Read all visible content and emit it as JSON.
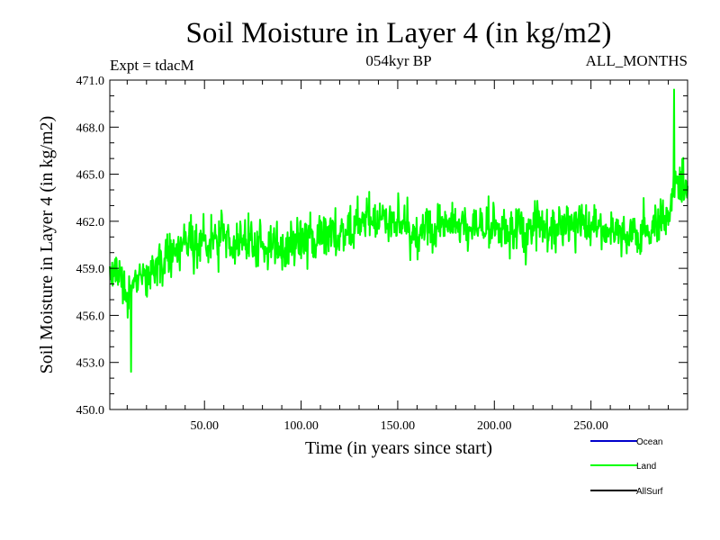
{
  "chart_data": {
    "type": "line",
    "title": "Soil Moisture in Layer 4 (in kg/m2)",
    "subtitle_left": "Expt = tdacM",
    "subtitle_center": "054kyr BP",
    "subtitle_right": "ALL_MONTHS",
    "xlabel": "Time (in years since start)",
    "ylabel": "Soil Moisture in Layer 4 (in kg/m2)",
    "xlim": [
      1,
      300
    ],
    "ylim": [
      450.0,
      471.0
    ],
    "x_ticks": [
      50,
      100,
      150,
      200,
      250
    ],
    "x_tick_labels": [
      "50.00",
      "100.00",
      "150.00",
      "200.00",
      "250.00"
    ],
    "y_ticks": [
      450,
      453,
      456,
      459,
      462,
      465,
      468,
      471
    ],
    "y_tick_labels": [
      "450.0",
      "453.0",
      "456.0",
      "459.0",
      "462.0",
      "465.0",
      "468.0",
      "471.0"
    ],
    "series": [
      {
        "name": "Land",
        "color": "#00ff00",
        "x_start": 1,
        "x_step": 0.25,
        "trend_x": [
          1,
          10,
          20,
          40,
          60,
          80,
          100,
          120,
          140,
          160,
          180,
          200,
          220,
          240,
          260,
          280,
          290,
          295,
          300
        ],
        "trend_y": [
          459.5,
          457.5,
          458.8,
          460.5,
          460.8,
          460.2,
          460.8,
          461.2,
          462.2,
          461.3,
          462.0,
          461.5,
          461.5,
          461.8,
          461.3,
          461.3,
          462.5,
          465.0,
          464.0
        ],
        "noise_amplitude": 1.4,
        "min_value": 452.4,
        "max_value": 470.4,
        "min_at_x": 12,
        "max_at_x": 293
      }
    ],
    "legend": [
      {
        "label": "Ocean",
        "color": "#0000cc"
      },
      {
        "label": "Land",
        "color": "#00ff00"
      },
      {
        "label": "AllSurf",
        "color": "#000000"
      }
    ],
    "legend_position": "bottom-right"
  }
}
